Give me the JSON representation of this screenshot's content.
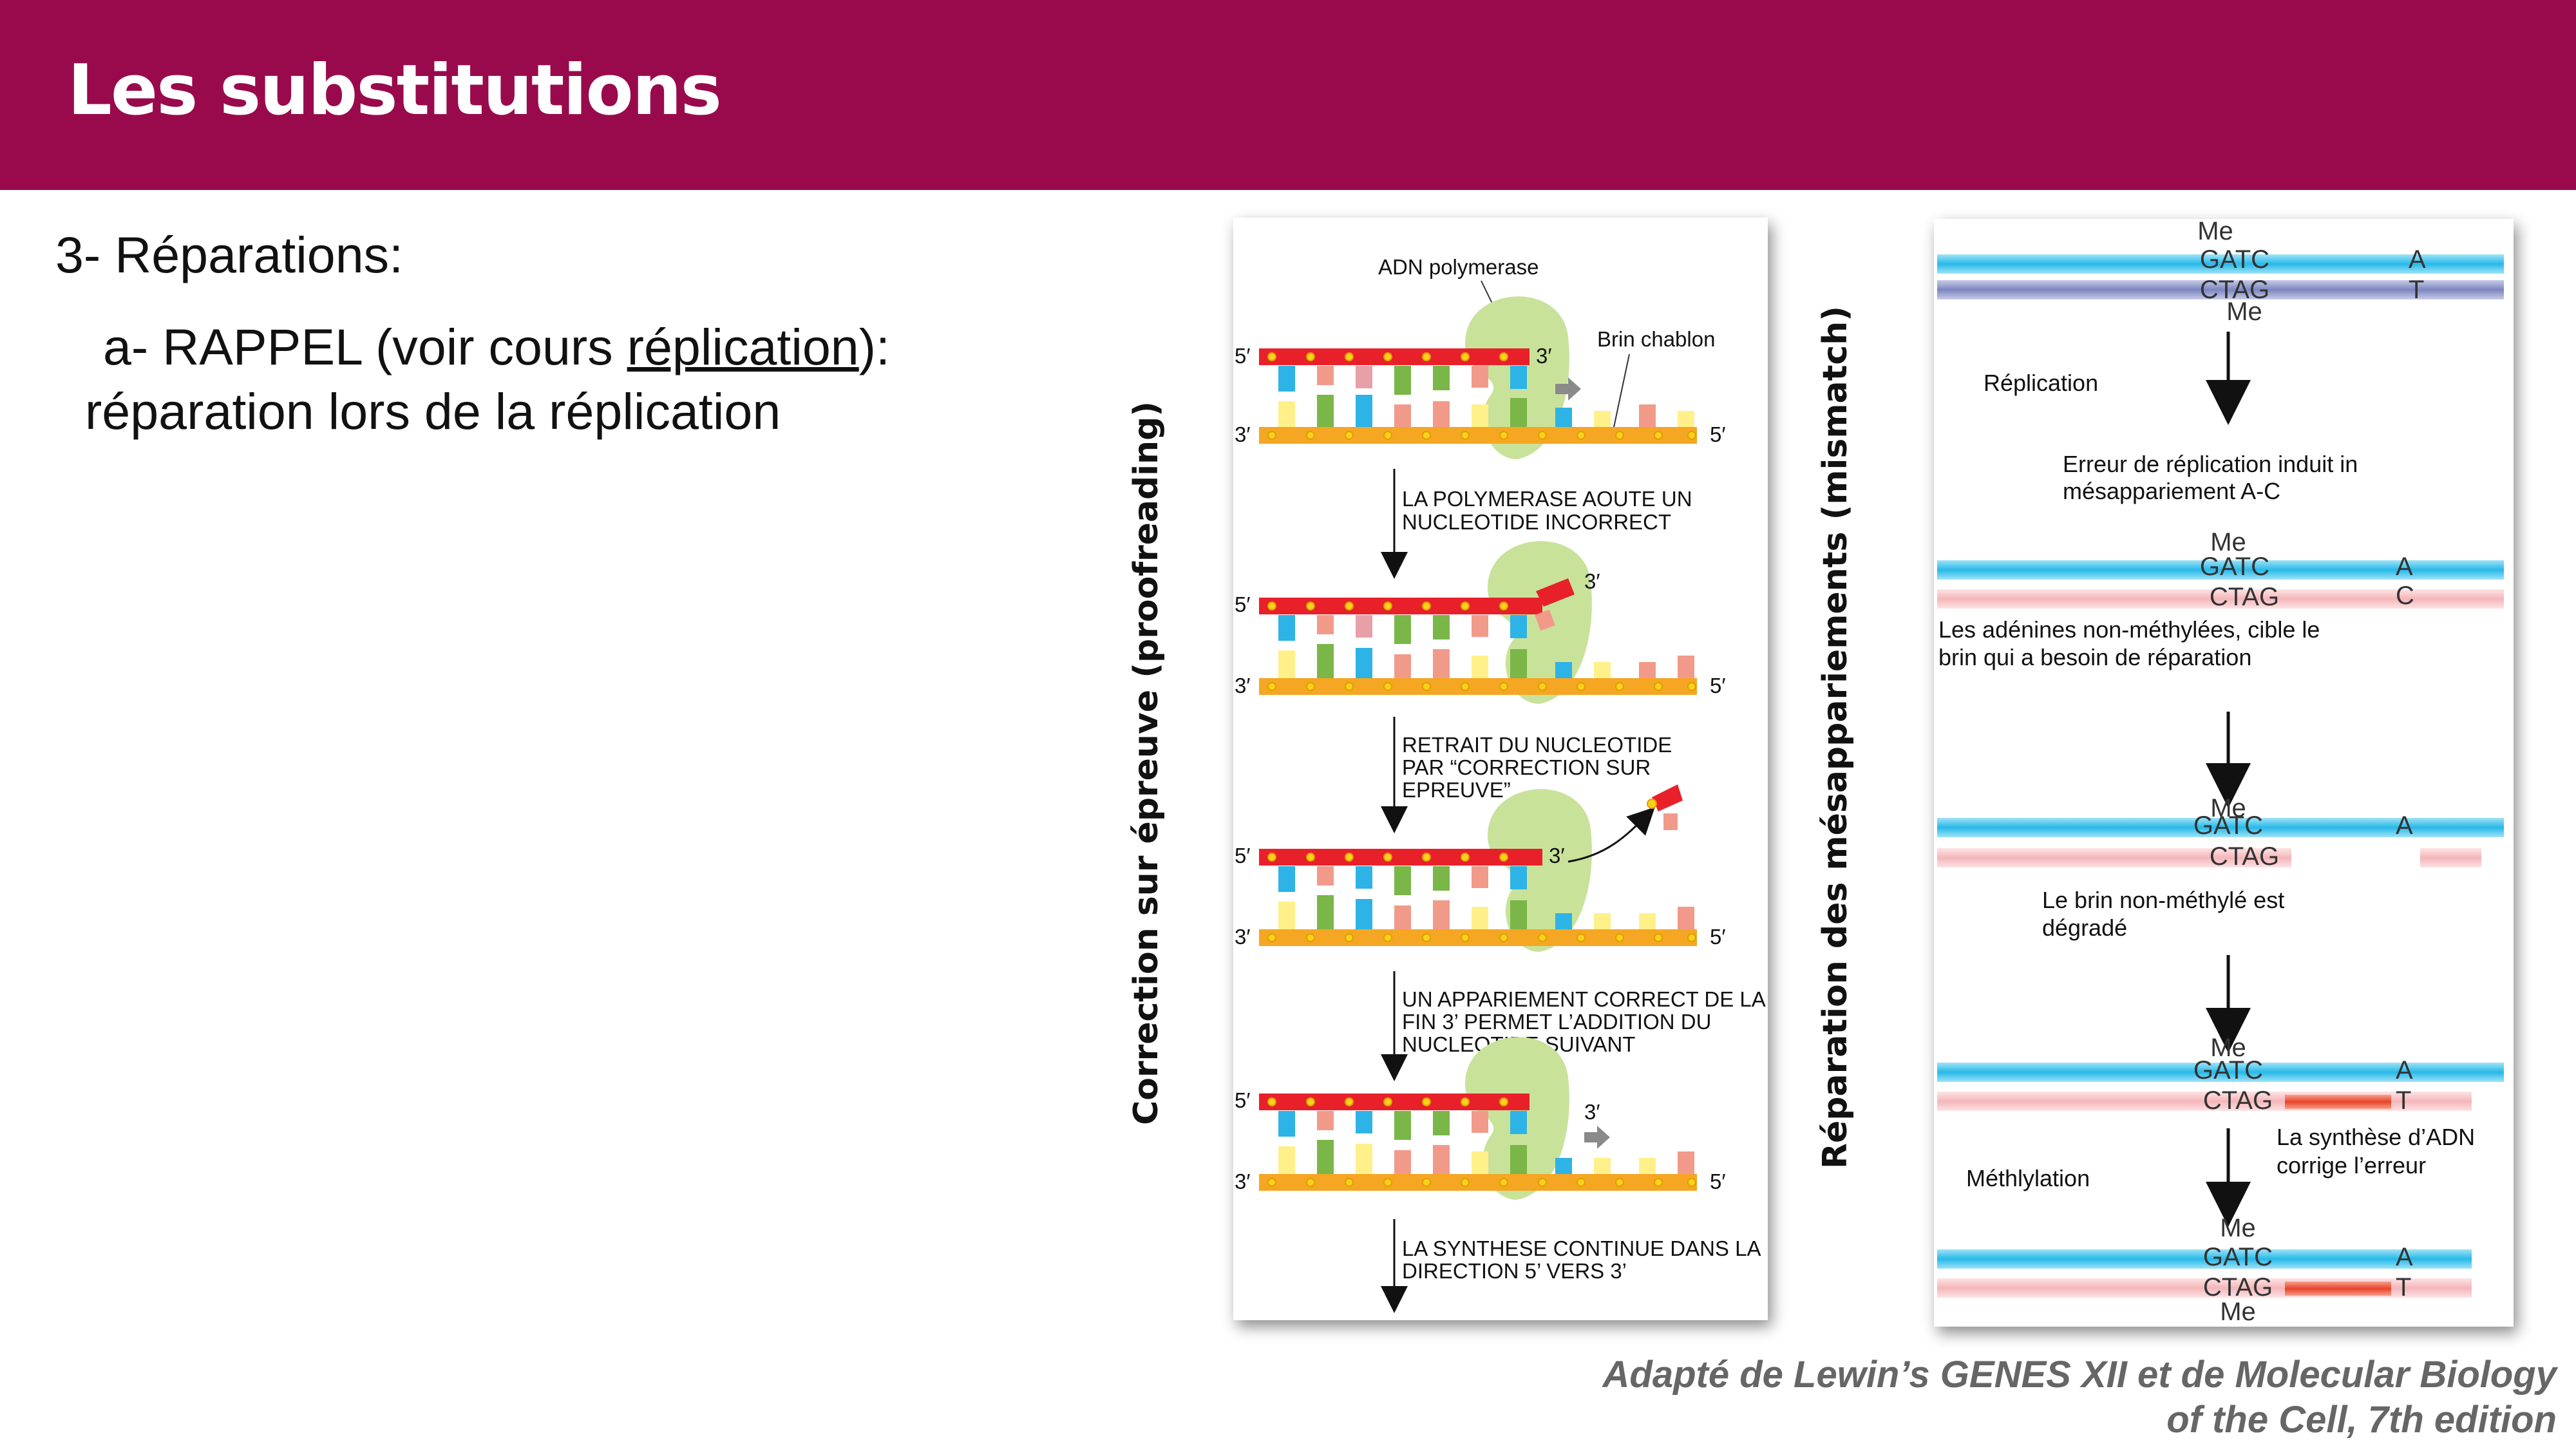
{
  "header": {
    "title": "Les substitutions"
  },
  "body_text": {
    "line1": "3- Réparations:",
    "line2_prefix": "a- RAPPEL (voir cours ",
    "line2_link": "réplication",
    "line2_suffix": "):",
    "line3": "réparation lors de la réplication"
  },
  "proofreading": {
    "side_label": "Correction sur épreuve (proofreading)",
    "polymerase_label": "ADN polymerase",
    "template_label": "Brin chablon",
    "end5": "5′",
    "end3": "3′",
    "steps": [
      [
        "LA POLYMERASE AOUTE UN",
        "NUCLEOTIDE INCORRECT"
      ],
      [
        "RETRAIT DU NUCLEOTIDE",
        "PAR “CORRECTION SUR",
        "EPREUVE”"
      ],
      [
        "UN APPARIEMENT CORRECT DE LA",
        "FIN 3’ PERMET L’ADDITION DU",
        "NUCLEOTIDE SUIVANT"
      ],
      [
        "LA SYNTHESE CONTINUE DANS LA",
        "DIRECTION 5’ VERS 3’"
      ]
    ],
    "colors": {
      "top_strand": "#e8202a",
      "bottom_strand": "#f5a623",
      "polymerase": "#c9e29a",
      "phosphate": "#f7d11e"
    }
  },
  "mismatch": {
    "side_label": "Réparation des mésappariements (mismatch)",
    "me": "Me",
    "gatc": "GATC",
    "ctag": "CTAG",
    "base_a": "A",
    "base_t": "T",
    "base_c": "C",
    "step_replication": "Réplication",
    "step_error": [
      "Erreur de réplication induit in",
      "mésappariement A-C"
    ],
    "step_target": [
      "Les adénines non-méthylées, cible le",
      "brin qui a besoin de réparation"
    ],
    "step_degraded": [
      "Le brin non-méthylé est",
      "dégradé"
    ],
    "step_synthesis": [
      "La synthèse d’ADN",
      "corrige l’erreur"
    ],
    "step_methylation": "Méthlylation",
    "colors": {
      "parent_strand": "#27b9e8",
      "parent_dark": "#8a93c8",
      "new_strand": "#f6c3c6",
      "repair": "#e8432b"
    }
  },
  "caption": [
    "Adapté de Lewin’s GENES XII et de Molecular Biology",
    "of the Cell, 7th edition"
  ]
}
